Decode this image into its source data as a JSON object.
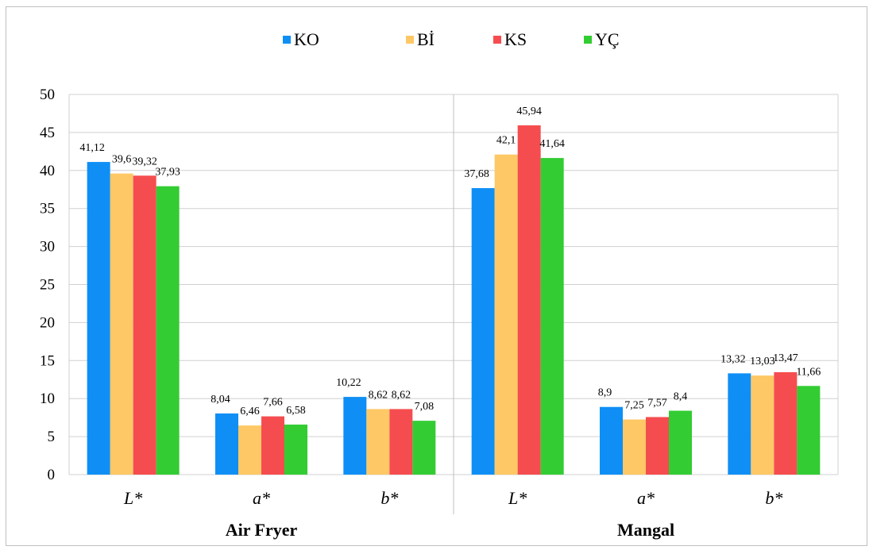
{
  "chart_data": {
    "type": "bar",
    "groups": [
      "Air Fryer",
      "Mangal"
    ],
    "categories": [
      "L*",
      "a*",
      "b*"
    ],
    "series": [
      {
        "name": "KO",
        "color": "#0f8ff5",
        "values": [
          [
            41.12,
            8.04,
            10.22
          ],
          [
            37.68,
            8.9,
            13.32
          ]
        ],
        "labels": [
          [
            "41,12",
            "8,04",
            "10,22"
          ],
          [
            "37,68",
            "8,9",
            "13,32"
          ]
        ]
      },
      {
        "name": "Bİ",
        "color": "#fdc865",
        "values": [
          [
            39.6,
            6.46,
            8.62
          ],
          [
            42.1,
            7.25,
            13.03
          ]
        ],
        "labels": [
          [
            "39,6",
            "6,46",
            "8,62"
          ],
          [
            "42,1",
            "7,25",
            "13,03"
          ]
        ]
      },
      {
        "name": "KS",
        "color": "#f54d4f",
        "values": [
          [
            39.32,
            7.66,
            8.62
          ],
          [
            45.94,
            7.57,
            13.47
          ]
        ],
        "labels": [
          [
            "39,32",
            "7,66",
            "8,62"
          ],
          [
            "45,94",
            "7,57",
            "13,47"
          ]
        ]
      },
      {
        "name": "YÇ",
        "color": "#33cc33",
        "values": [
          [
            37.93,
            6.58,
            7.08
          ],
          [
            41.64,
            8.4,
            11.66
          ]
        ],
        "labels": [
          [
            "37,93",
            "6,58",
            "7,08"
          ],
          [
            "41,64",
            "8,4",
            "11,66"
          ]
        ]
      }
    ],
    "ylim": [
      0,
      50
    ],
    "yticks": [
      "0",
      "5",
      "10",
      "15",
      "20",
      "25",
      "30",
      "35",
      "40",
      "45",
      "50"
    ],
    "grid": true,
    "legend": "top-center"
  }
}
